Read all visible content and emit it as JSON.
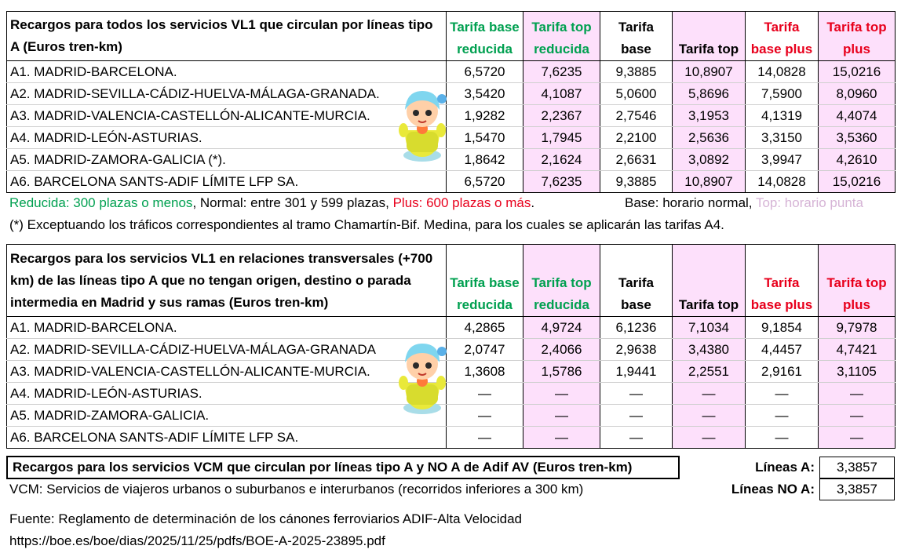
{
  "colors": {
    "green": "#00a050",
    "red": "#e8001c",
    "pink_bg": "#fde0fb",
    "light_pink_text": "#d6b4d6"
  },
  "columns": {
    "base_reducida": "Tarifa base reducida",
    "top_reducida": "Tarifa top reducida",
    "base": "Tarifa base",
    "top": "Tarifa top",
    "base_plus": "Tarifa base plus",
    "top_plus": "Tarifa top plus"
  },
  "table1": {
    "title": "Recargos para todos los servicios VL1 que circulan por líneas tipo A (Euros tren-km)",
    "rows": [
      {
        "name": "A1. MADRID-BARCELONA.",
        "v": [
          "6,5720",
          "7,6235",
          "9,3885",
          "10,8907",
          "14,0828",
          "15,0216"
        ]
      },
      {
        "name": "A2. MADRID-SEVILLA-CÁDIZ-HUELVA-MÁLAGA-GRANADA.",
        "v": [
          "3,5420",
          "4,1087",
          "5,0600",
          "5,8696",
          "7,5900",
          "8,0960"
        ]
      },
      {
        "name": "A3. MADRID-VALENCIA-CASTELLÓN-ALICANTE-MURCIA.",
        "v": [
          "1,9282",
          "2,2367",
          "2,7546",
          "3,1953",
          "4,1319",
          "4,4074"
        ]
      },
      {
        "name": "A4. MADRID-LEÓN-ASTURIAS.",
        "v": [
          "1,5470",
          "1,7945",
          "2,2100",
          "2,5636",
          "3,3150",
          "3,5360"
        ]
      },
      {
        "name": "A5. MADRID-ZAMORA-GALICIA (*).",
        "v": [
          "1,8642",
          "2,1624",
          "2,6631",
          "3,0892",
          "3,9947",
          "4,2610"
        ]
      },
      {
        "name": "A6. BARCELONA SANTS-ADIF LÍMITE LFP SA.",
        "v": [
          "6,5720",
          "7,6235",
          "9,3885",
          "10,8907",
          "14,0828",
          "15,0216"
        ]
      }
    ]
  },
  "legend": {
    "reducida": "Reducida: 300 plazas o menos",
    "normal": ", Normal: entre 301 y 599 plazas, ",
    "plus": "Plus: 600 plazas o más",
    "period": ".",
    "base": "Base: horario normal, ",
    "top": "Top: horario punta"
  },
  "footnote": "(*) Exceptuando los tráficos correspondientes al tramo Chamartín-Bif. Medina, para los cuales se aplicarán las tarifas A4.",
  "table2": {
    "title": "Recargos para los servicios VL1 en relaciones transversales (+700 km) de las líneas tipo A que no tengan origen, destino o parada intermedia en Madrid y sus ramas (Euros tren-km)",
    "rows": [
      {
        "name": "A1. MADRID-BARCELONA.",
        "v": [
          "4,2865",
          "4,9724",
          "6,1236",
          "7,1034",
          "9,1854",
          "9,7978"
        ]
      },
      {
        "name": "A2. MADRID-SEVILLA-CÁDIZ-HUELVA-MÁLAGA-GRANADA",
        "v": [
          "2,0747",
          "2,4066",
          "2,9638",
          "3,4380",
          "4,4457",
          "4,7421"
        ]
      },
      {
        "name": "A3. MADRID-VALENCIA-CASTELLÓN-ALICANTE-MURCIA.",
        "v": [
          "1,3608",
          "1,5786",
          "1,9441",
          "2,2551",
          "2,9161",
          "3,1105"
        ]
      },
      {
        "name": "A4. MADRID-LEÓN-ASTURIAS.",
        "v": [
          "—",
          "—",
          "—",
          "—",
          "—",
          "—"
        ]
      },
      {
        "name": "A5. MADRID-ZAMORA-GALICIA.",
        "v": [
          "—",
          "—",
          "—",
          "—",
          "—",
          "—"
        ]
      },
      {
        "name": "A6. BARCELONA SANTS-ADIF LÍMITE LFP SA.",
        "v": [
          "—",
          "—",
          "—",
          "—",
          "—",
          "—"
        ]
      }
    ]
  },
  "vcm": {
    "title": "Recargos para los servicios VCM que circulan por líneas tipo A y NO A de Adif AV (Euros tren-km)",
    "description": "VCM: Servicios de viajeros urbanos o suburbanos e interurbanos (recorridos inferiores a 300 km)",
    "lineas_a_label": "Líneas A:",
    "lineas_a_value": "3,3857",
    "lineas_no_a_label": "Líneas NO A:",
    "lineas_no_a_value": "3,3857"
  },
  "source": {
    "line1": "Fuente: Reglamento de determinación de los cánones ferroviarios ADIF-Alta Velocidad",
    "line2": "https://boe.es/boe/dias/2025/11/25/pdfs/BOE-A-2025-23895.pdf"
  }
}
